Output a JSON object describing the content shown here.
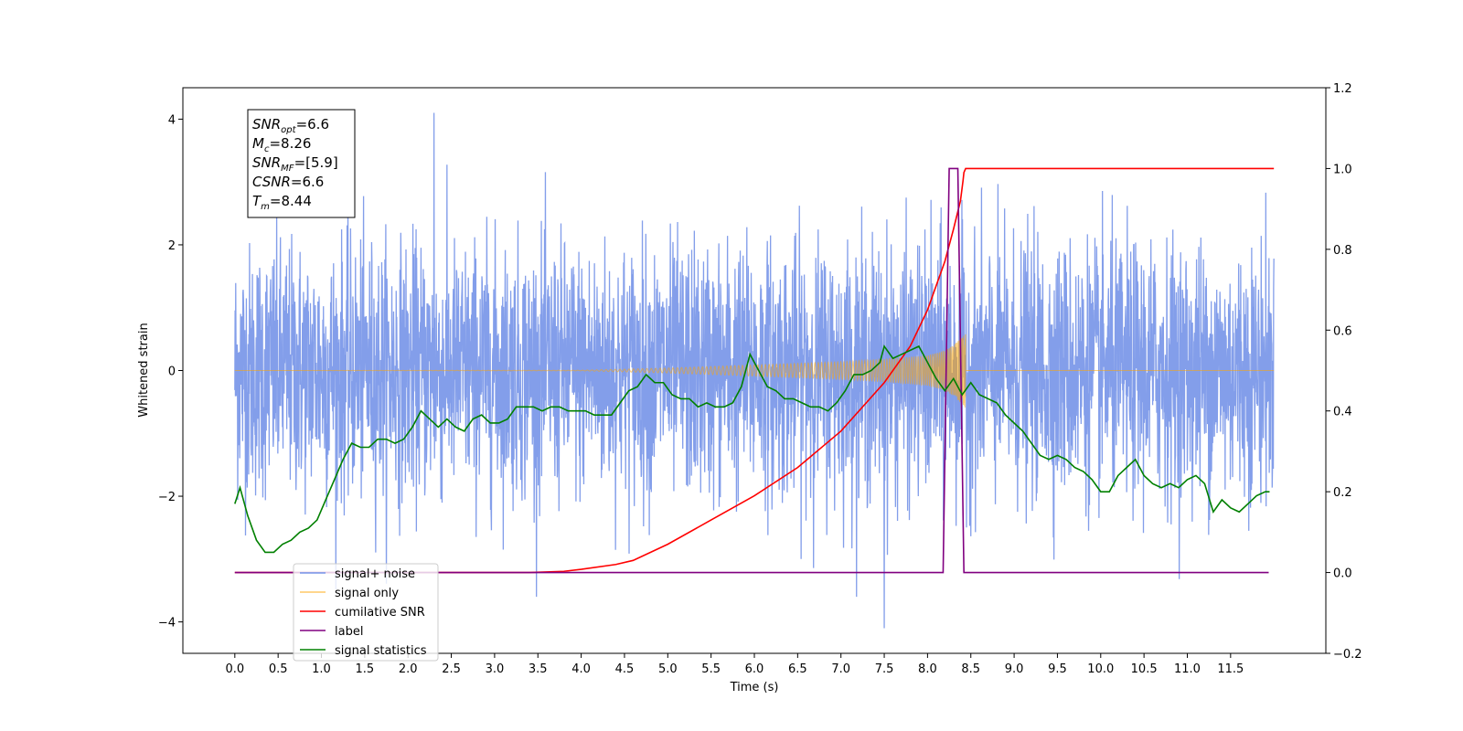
{
  "chart_data": {
    "type": "line",
    "title": "",
    "xlabel": "Time (s)",
    "ylabel_left": "Whitened strain",
    "ylabel_right": "",
    "xlim": [
      -0.6,
      12.6
    ],
    "ylim_left": [
      -4.5,
      4.5
    ],
    "ylim_right": [
      -0.2,
      1.2
    ],
    "x_ticks": [
      "0.0",
      "0.5",
      "1.0",
      "1.5",
      "2.0",
      "2.5",
      "3.0",
      "3.5",
      "4.0",
      "4.5",
      "5.0",
      "5.5",
      "6.0",
      "6.5",
      "7.0",
      "7.5",
      "8.0",
      "8.5",
      "9.0",
      "9.5",
      "10.0",
      "10.5",
      "11.0",
      "11.5"
    ],
    "y_ticks_left": [
      -4,
      -2,
      0,
      2,
      4
    ],
    "y_ticks_right": [
      "-0.2",
      "0.0",
      "0.2",
      "0.4",
      "0.6",
      "0.8",
      "1.0",
      "1.2"
    ],
    "grid": false,
    "legend_position": "lower-left",
    "info_box": [
      {
        "var": "SNR",
        "sub": "opt",
        "value": "=6.6"
      },
      {
        "var": "M",
        "sub": "c",
        "value": "=8.26"
      },
      {
        "var": "SNR",
        "sub": "MF",
        "value": "=[5.9]"
      },
      {
        "var": "CSNR",
        "sub": "",
        "value": "=6.6"
      },
      {
        "var": "T",
        "sub": "m",
        "value": "=8.44"
      }
    ],
    "series": [
      {
        "name": "signal+ noise",
        "axis": "left",
        "color": "#7593e8",
        "x_range": [
          0.0,
          12.0
        ],
        "std": 1.0,
        "max_peak": {
          "x": 2.3,
          "y": 4.1
        },
        "min_peak": {
          "x": 7.5,
          "y": -4.1
        }
      },
      {
        "name": "signal only",
        "axis": "left",
        "color": "#ffa500",
        "x_range": [
          0.0,
          8.44
        ],
        "amplitude_envelope": {
          "x": [
            0.0,
            4.0,
            5.0,
            6.0,
            7.0,
            7.5,
            8.0,
            8.2,
            8.3,
            8.44
          ],
          "y": [
            0.0,
            0.005,
            0.04,
            0.09,
            0.14,
            0.18,
            0.24,
            0.32,
            0.4,
            0.6
          ]
        }
      },
      {
        "name": "cumilative SNR",
        "axis": "right",
        "color": "#ff0000",
        "x": [
          0.0,
          3.4,
          3.8,
          4.0,
          4.4,
          4.6,
          5.0,
          5.5,
          6.0,
          6.5,
          7.0,
          7.5,
          7.8,
          8.0,
          8.2,
          8.3,
          8.38,
          8.41,
          8.42,
          8.44,
          12.0
        ],
        "y": [
          0.0,
          0.0,
          0.003,
          0.008,
          0.02,
          0.03,
          0.07,
          0.13,
          0.19,
          0.26,
          0.35,
          0.47,
          0.56,
          0.65,
          0.77,
          0.85,
          0.92,
          0.97,
          0.99,
          1.0,
          1.0
        ]
      },
      {
        "name": "label",
        "axis": "right",
        "color": "#800080",
        "x": [
          0.0,
          8.18,
          8.25,
          8.35,
          8.42,
          11.94
        ],
        "y": [
          0.0,
          0.0,
          1.0,
          1.0,
          0.0,
          0.0
        ]
      },
      {
        "name": "signal statistics",
        "axis": "right",
        "color": "#008000",
        "x": [
          0.0,
          0.06,
          0.15,
          0.25,
          0.35,
          0.45,
          0.55,
          0.65,
          0.75,
          0.85,
          0.95,
          1.05,
          1.15,
          1.25,
          1.35,
          1.45,
          1.55,
          1.65,
          1.75,
          1.85,
          1.95,
          2.05,
          2.15,
          2.25,
          2.35,
          2.45,
          2.55,
          2.65,
          2.75,
          2.85,
          2.95,
          3.05,
          3.15,
          3.25,
          3.35,
          3.45,
          3.55,
          3.65,
          3.75,
          3.85,
          3.95,
          4.05,
          4.15,
          4.25,
          4.35,
          4.45,
          4.55,
          4.65,
          4.75,
          4.85,
          4.95,
          5.05,
          5.15,
          5.25,
          5.35,
          5.45,
          5.55,
          5.65,
          5.75,
          5.85,
          5.95,
          6.05,
          6.15,
          6.25,
          6.35,
          6.45,
          6.55,
          6.65,
          6.75,
          6.85,
          6.95,
          7.05,
          7.15,
          7.25,
          7.35,
          7.45,
          7.5,
          7.6,
          7.7,
          7.8,
          7.9,
          8.0,
          8.1,
          8.2,
          8.3,
          8.4,
          8.5,
          8.6,
          8.7,
          8.8,
          8.9,
          9.0,
          9.1,
          9.2,
          9.3,
          9.4,
          9.5,
          9.6,
          9.7,
          9.8,
          9.9,
          10.0,
          10.1,
          10.2,
          10.3,
          10.4,
          10.5,
          10.6,
          10.7,
          10.8,
          10.9,
          11.0,
          11.1,
          11.2,
          11.3,
          11.4,
          11.5,
          11.6,
          11.7,
          11.8,
          11.9,
          11.95
        ],
        "y": [
          0.17,
          0.21,
          0.14,
          0.08,
          0.05,
          0.05,
          0.07,
          0.08,
          0.1,
          0.11,
          0.13,
          0.18,
          0.23,
          0.28,
          0.32,
          0.31,
          0.31,
          0.33,
          0.33,
          0.32,
          0.33,
          0.36,
          0.4,
          0.38,
          0.36,
          0.38,
          0.36,
          0.35,
          0.38,
          0.39,
          0.37,
          0.37,
          0.38,
          0.41,
          0.41,
          0.41,
          0.4,
          0.41,
          0.41,
          0.4,
          0.4,
          0.4,
          0.39,
          0.39,
          0.39,
          0.42,
          0.45,
          0.46,
          0.49,
          0.47,
          0.47,
          0.44,
          0.43,
          0.43,
          0.41,
          0.42,
          0.41,
          0.41,
          0.42,
          0.46,
          0.54,
          0.5,
          0.46,
          0.45,
          0.43,
          0.43,
          0.42,
          0.41,
          0.41,
          0.4,
          0.42,
          0.45,
          0.49,
          0.49,
          0.5,
          0.52,
          0.56,
          0.53,
          0.54,
          0.55,
          0.56,
          0.52,
          0.48,
          0.45,
          0.48,
          0.44,
          0.47,
          0.44,
          0.43,
          0.42,
          0.39,
          0.37,
          0.35,
          0.32,
          0.29,
          0.28,
          0.29,
          0.28,
          0.26,
          0.25,
          0.23,
          0.2,
          0.2,
          0.24,
          0.26,
          0.28,
          0.24,
          0.22,
          0.21,
          0.22,
          0.21,
          0.23,
          0.24,
          0.22,
          0.15,
          0.18,
          0.16,
          0.15,
          0.17,
          0.19,
          0.2,
          0.2
        ]
      }
    ]
  }
}
